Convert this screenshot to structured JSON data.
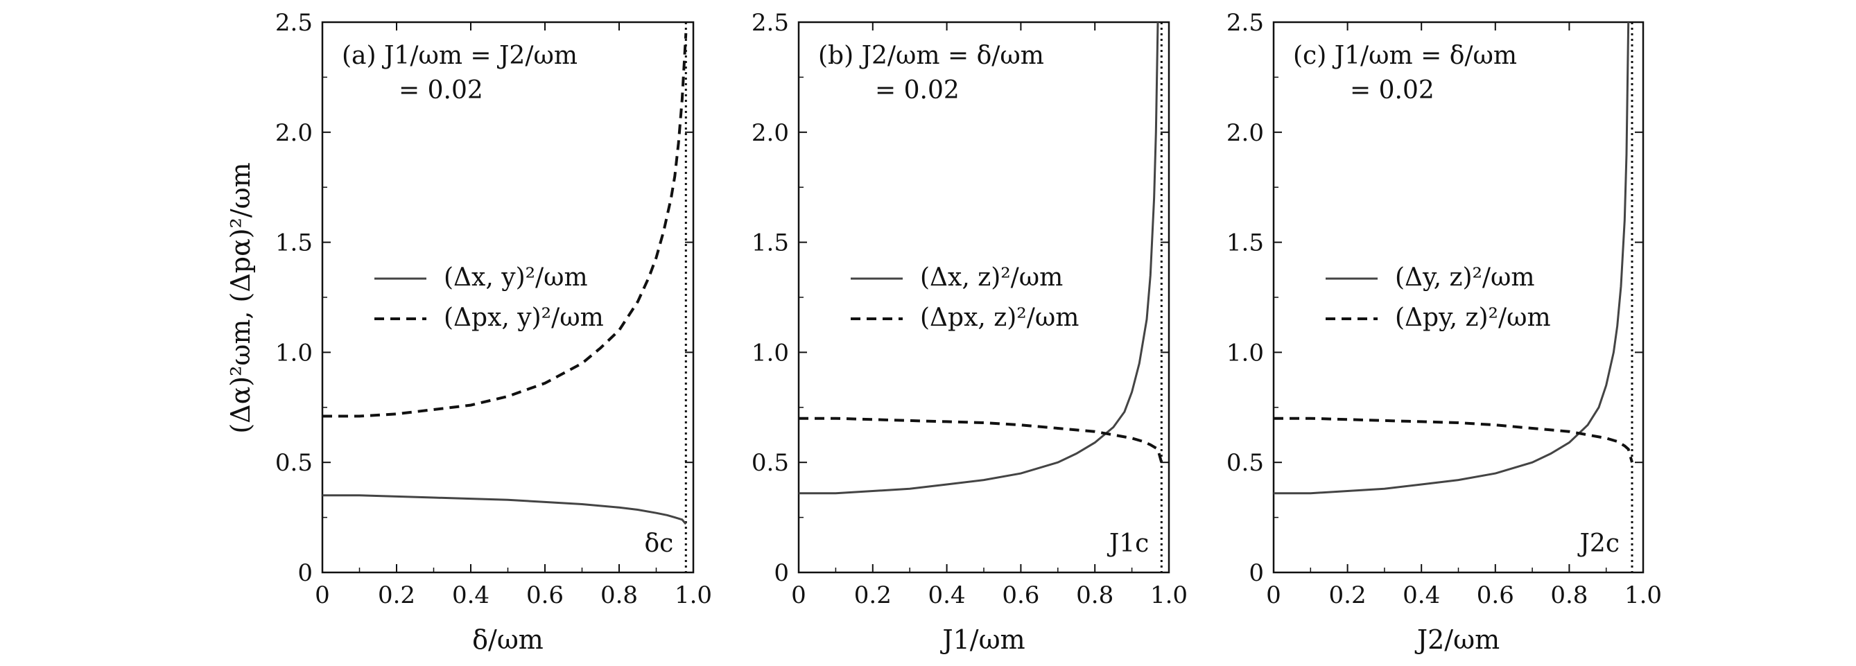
{
  "figure": {
    "ylabel": "(Δα)²ωm, (Δpα)²/ωm"
  },
  "chart_data": [
    {
      "type": "line",
      "panel": "a",
      "xlabel": "δ/ωm",
      "xlim": [
        0,
        1.0
      ],
      "ylim": [
        0,
        2.5
      ],
      "xticks": [
        "0",
        "0.2",
        "0.4",
        "0.6",
        "0.8",
        "1.0"
      ],
      "yticks": [
        "0",
        "0.5",
        "1.0",
        "1.5",
        "2.0",
        "2.5"
      ],
      "annotation_line1": "(a) J1/ωm = J2/ωm",
      "annotation_line2": "= 0.02",
      "critical_label": "δc",
      "critical_x": 0.98,
      "legend_position": "center-left",
      "series": [
        {
          "name": "(Δx, y)²/ωm",
          "style": "solid",
          "x": [
            0,
            0.1,
            0.2,
            0.3,
            0.4,
            0.5,
            0.6,
            0.7,
            0.8,
            0.85,
            0.9,
            0.93,
            0.95,
            0.97,
            0.98
          ],
          "y": [
            0.35,
            0.35,
            0.345,
            0.34,
            0.335,
            0.33,
            0.32,
            0.31,
            0.295,
            0.285,
            0.27,
            0.26,
            0.25,
            0.24,
            0.22
          ]
        },
        {
          "name": "(Δpx, y)²/ωm",
          "style": "dashed",
          "x": [
            0,
            0.1,
            0.2,
            0.3,
            0.4,
            0.5,
            0.6,
            0.7,
            0.75,
            0.8,
            0.85,
            0.88,
            0.9,
            0.92,
            0.94,
            0.95,
            0.96,
            0.97,
            0.975,
            0.98
          ],
          "y": [
            0.71,
            0.71,
            0.72,
            0.74,
            0.76,
            0.8,
            0.86,
            0.95,
            1.02,
            1.1,
            1.23,
            1.34,
            1.43,
            1.55,
            1.7,
            1.8,
            1.95,
            2.15,
            2.3,
            2.45
          ]
        }
      ]
    },
    {
      "type": "line",
      "panel": "b",
      "xlabel": "J1/ωm",
      "xlim": [
        0,
        1.0
      ],
      "ylim": [
        0,
        2.5
      ],
      "xticks": [
        "0",
        "0.2",
        "0.4",
        "0.6",
        "0.8",
        "1.0"
      ],
      "yticks": [
        "0",
        "0.5",
        "1.0",
        "1.5",
        "2.0",
        "2.5"
      ],
      "annotation_line1": "(b) J2/ωm = δ/ωm",
      "annotation_line2": "= 0.02",
      "critical_label": "J1c",
      "critical_x": 0.98,
      "legend_position": "center-left",
      "series": [
        {
          "name": "(Δx, z)²/ωm",
          "style": "solid",
          "x": [
            0,
            0.1,
            0.2,
            0.3,
            0.4,
            0.5,
            0.6,
            0.7,
            0.75,
            0.8,
            0.85,
            0.88,
            0.9,
            0.92,
            0.94,
            0.95,
            0.96,
            0.965,
            0.97
          ],
          "y": [
            0.36,
            0.36,
            0.37,
            0.38,
            0.4,
            0.42,
            0.45,
            0.5,
            0.54,
            0.59,
            0.66,
            0.73,
            0.82,
            0.95,
            1.15,
            1.35,
            1.7,
            2.0,
            2.5
          ]
        },
        {
          "name": "(Δpx, z)²/ωm",
          "style": "dashed",
          "x": [
            0,
            0.1,
            0.2,
            0.3,
            0.4,
            0.5,
            0.6,
            0.7,
            0.8,
            0.85,
            0.9,
            0.93,
            0.95,
            0.97,
            0.98
          ],
          "y": [
            0.7,
            0.7,
            0.695,
            0.69,
            0.685,
            0.68,
            0.67,
            0.655,
            0.64,
            0.625,
            0.61,
            0.595,
            0.58,
            0.56,
            0.5
          ]
        }
      ]
    },
    {
      "type": "line",
      "panel": "c",
      "xlabel": "J2/ωm",
      "xlim": [
        0,
        1.0
      ],
      "ylim": [
        0,
        2.5
      ],
      "xticks": [
        "0",
        "0.2",
        "0.4",
        "0.6",
        "0.8",
        "1.0"
      ],
      "yticks": [
        "0",
        "0.5",
        "1.0",
        "1.5",
        "2.0",
        "2.5"
      ],
      "annotation_line1": "(c) J1/ωm = δ/ωm",
      "annotation_line2": "= 0.02",
      "critical_label": "J2c",
      "critical_x": 0.97,
      "legend_position": "center-left",
      "series": [
        {
          "name": "(Δy, z)²/ωm",
          "style": "solid",
          "x": [
            0,
            0.1,
            0.2,
            0.3,
            0.4,
            0.5,
            0.6,
            0.7,
            0.75,
            0.8,
            0.85,
            0.88,
            0.9,
            0.92,
            0.93,
            0.94,
            0.95,
            0.955,
            0.96
          ],
          "y": [
            0.36,
            0.36,
            0.37,
            0.38,
            0.4,
            0.42,
            0.45,
            0.5,
            0.54,
            0.59,
            0.67,
            0.75,
            0.85,
            1.0,
            1.12,
            1.3,
            1.6,
            1.9,
            2.5
          ]
        },
        {
          "name": "(Δpy, z)²/ωm",
          "style": "dashed",
          "x": [
            0,
            0.1,
            0.2,
            0.3,
            0.4,
            0.5,
            0.6,
            0.7,
            0.8,
            0.85,
            0.9,
            0.93,
            0.95,
            0.96,
            0.97
          ],
          "y": [
            0.7,
            0.7,
            0.695,
            0.69,
            0.685,
            0.68,
            0.67,
            0.655,
            0.64,
            0.625,
            0.61,
            0.595,
            0.575,
            0.56,
            0.5
          ]
        }
      ]
    }
  ]
}
